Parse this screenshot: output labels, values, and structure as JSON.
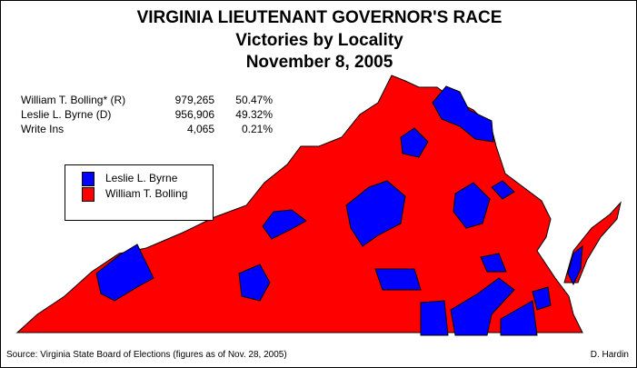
{
  "title": "VIRGINIA LIEUTENANT GOVERNOR'S RACE",
  "subtitle": "Victories by Locality",
  "date": "November 8, 2005",
  "results": [
    {
      "candidate": "William T. Bolling*  (R)",
      "votes": "979,265",
      "percent": "50.47%"
    },
    {
      "candidate": "Leslie L. Byrne  (D)",
      "votes": "956,906",
      "percent": "49.32%"
    },
    {
      "candidate": "Write Ins",
      "votes": "4,065",
      "percent": "0.21%"
    }
  ],
  "legend": [
    {
      "label": "Leslie L. Byrne",
      "color": "#0000ff"
    },
    {
      "label": "William T. Bolling",
      "color": "#ff0000"
    }
  ],
  "source": "Source: Virginia State Board of Elections (figures as of Nov. 28, 2005)",
  "author": "D. Hardin"
}
